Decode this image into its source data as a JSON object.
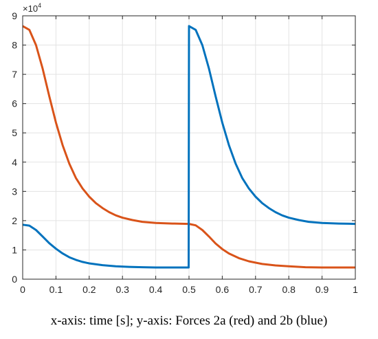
{
  "caption": "x-axis: time [s]; y-axis: Forces 2a (red) and 2b (blue)",
  "chart_data": {
    "type": "line",
    "title": "",
    "xlabel": "",
    "ylabel": "",
    "xlim": [
      0,
      1
    ],
    "ylim": [
      0,
      90000
    ],
    "y_exponent_label": "×10",
    "y_exponent_power": "4",
    "grid": true,
    "x_ticks": [
      {
        "value": 0,
        "label": "0"
      },
      {
        "value": 0.1,
        "label": "0.1"
      },
      {
        "value": 0.2,
        "label": "0.2"
      },
      {
        "value": 0.3,
        "label": "0.3"
      },
      {
        "value": 0.4,
        "label": "0.4"
      },
      {
        "value": 0.5,
        "label": "0.5"
      },
      {
        "value": 0.6,
        "label": "0.6"
      },
      {
        "value": 0.7,
        "label": "0.7"
      },
      {
        "value": 0.8,
        "label": "0.8"
      },
      {
        "value": 0.9,
        "label": "0.9"
      },
      {
        "value": 1,
        "label": "1"
      }
    ],
    "y_ticks": [
      {
        "value": 0,
        "label": "0"
      },
      {
        "value": 10000,
        "label": "1"
      },
      {
        "value": 20000,
        "label": "2"
      },
      {
        "value": 30000,
        "label": "3"
      },
      {
        "value": 40000,
        "label": "4"
      },
      {
        "value": 50000,
        "label": "5"
      },
      {
        "value": 60000,
        "label": "6"
      },
      {
        "value": 70000,
        "label": "7"
      },
      {
        "value": 80000,
        "label": "8"
      },
      {
        "value": 90000,
        "label": "9"
      }
    ],
    "series": [
      {
        "color": "#D95319",
        "points": [
          [
            0,
            86500
          ],
          [
            0.02,
            85200
          ],
          [
            0.04,
            80000
          ],
          [
            0.06,
            72000
          ],
          [
            0.08,
            62500
          ],
          [
            0.1,
            53500
          ],
          [
            0.12,
            45800
          ],
          [
            0.14,
            39500
          ],
          [
            0.16,
            34600
          ],
          [
            0.18,
            31000
          ],
          [
            0.2,
            28200
          ],
          [
            0.22,
            26000
          ],
          [
            0.24,
            24300
          ],
          [
            0.26,
            22900
          ],
          [
            0.28,
            21800
          ],
          [
            0.3,
            21000
          ],
          [
            0.33,
            20200
          ],
          [
            0.36,
            19600
          ],
          [
            0.4,
            19200
          ],
          [
            0.45,
            19000
          ],
          [
            0.5,
            18900
          ],
          [
            0.52,
            18400
          ],
          [
            0.54,
            16800
          ],
          [
            0.56,
            14600
          ],
          [
            0.58,
            12200
          ],
          [
            0.6,
            10300
          ],
          [
            0.62,
            8800
          ],
          [
            0.65,
            7200
          ],
          [
            0.68,
            6100
          ],
          [
            0.72,
            5200
          ],
          [
            0.76,
            4700
          ],
          [
            0.8,
            4400
          ],
          [
            0.85,
            4100
          ],
          [
            0.9,
            4000
          ],
          [
            0.95,
            4000
          ],
          [
            1.0,
            4000
          ]
        ]
      },
      {
        "color": "#0072BD",
        "points": [
          [
            0,
            18600
          ],
          [
            0.02,
            18300
          ],
          [
            0.04,
            16800
          ],
          [
            0.06,
            14600
          ],
          [
            0.08,
            12300
          ],
          [
            0.1,
            10400
          ],
          [
            0.12,
            8800
          ],
          [
            0.14,
            7500
          ],
          [
            0.16,
            6600
          ],
          [
            0.18,
            5900
          ],
          [
            0.2,
            5400
          ],
          [
            0.24,
            4800
          ],
          [
            0.28,
            4400
          ],
          [
            0.32,
            4200
          ],
          [
            0.36,
            4100
          ],
          [
            0.4,
            4000
          ],
          [
            0.45,
            4000
          ],
          [
            0.499,
            4000
          ],
          [
            0.5,
            86500
          ],
          [
            0.52,
            85200
          ],
          [
            0.54,
            80000
          ],
          [
            0.56,
            72000
          ],
          [
            0.58,
            62500
          ],
          [
            0.6,
            53500
          ],
          [
            0.62,
            45800
          ],
          [
            0.64,
            39500
          ],
          [
            0.66,
            34600
          ],
          [
            0.68,
            31000
          ],
          [
            0.7,
            28200
          ],
          [
            0.72,
            26000
          ],
          [
            0.74,
            24300
          ],
          [
            0.76,
            22900
          ],
          [
            0.78,
            21800
          ],
          [
            0.8,
            21000
          ],
          [
            0.83,
            20200
          ],
          [
            0.86,
            19600
          ],
          [
            0.9,
            19200
          ],
          [
            0.95,
            19000
          ],
          [
            1.0,
            18900
          ]
        ]
      }
    ]
  }
}
